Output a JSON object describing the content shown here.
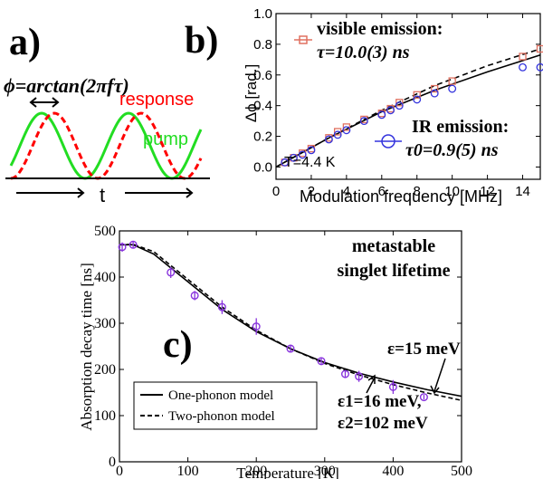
{
  "chart_data": [
    {
      "panel_label": "a)",
      "type": "line",
      "formula": "ϕ=arctan(2πfτ)",
      "series": [
        {
          "name": "response",
          "color": "#ff0000",
          "style": "dashed"
        },
        {
          "name": "pump",
          "color": "#22dd22",
          "style": "solid"
        }
      ],
      "xlabel": "t"
    },
    {
      "panel_label": "b)",
      "type": "scatter",
      "xlabel": "Modulation frequency [MHz]",
      "ylabel": "Δϕ [rad.]",
      "xlim": [
        0,
        15
      ],
      "ylim": [
        -0.08,
        1.0
      ],
      "xticks": [
        "0",
        "2",
        "4",
        "6",
        "8",
        "10",
        "12",
        "14"
      ],
      "yticks": [
        "0.0",
        "0.2",
        "0.4",
        "0.6",
        "0.8",
        "1.0"
      ],
      "annotation": "T=4.4 K",
      "series": [
        {
          "name": "visible emission:",
          "fit_label": "τ=10.0(3) ns",
          "color": "#e07060",
          "marker": "square",
          "x": [
            0.5,
            1.0,
            1.5,
            2.0,
            3.0,
            3.5,
            4.0,
            5.0,
            6.0,
            6.5,
            7.0,
            8.0,
            9.0,
            10.0,
            14.0,
            15.0
          ],
          "y": [
            0.03,
            0.06,
            0.09,
            0.12,
            0.19,
            0.23,
            0.26,
            0.31,
            0.35,
            0.38,
            0.42,
            0.47,
            0.51,
            0.56,
            0.72,
            0.77
          ]
        },
        {
          "name": "IR emission:",
          "fit_label": "τ0=0.9(5) ns",
          "color": "#3333dd",
          "marker": "circle",
          "x": [
            0.5,
            1.0,
            1.5,
            2.0,
            3.0,
            3.5,
            4.0,
            5.0,
            6.0,
            6.5,
            7.0,
            8.0,
            9.0,
            10.0,
            14.0,
            15.0
          ],
          "y": [
            0.03,
            0.06,
            0.08,
            0.11,
            0.18,
            0.21,
            0.24,
            0.3,
            0.34,
            0.37,
            0.4,
            0.44,
            0.48,
            0.51,
            0.65,
            0.65
          ]
        },
        {
          "name": "fit-solid",
          "style": "solid",
          "x": [
            0,
            3,
            6,
            9,
            12,
            15
          ],
          "y": [
            0.0,
            0.19,
            0.36,
            0.5,
            0.62,
            0.73
          ]
        },
        {
          "name": "fit-dashed",
          "style": "dashed",
          "x": [
            0,
            3,
            6,
            9,
            12,
            15
          ],
          "y": [
            0.0,
            0.19,
            0.37,
            0.53,
            0.66,
            0.77
          ]
        }
      ]
    },
    {
      "panel_label": "c)",
      "type": "scatter",
      "xlabel": "Temperature [K]",
      "ylabel": "Absorption decay time [ns]",
      "xlim": [
        0,
        500
      ],
      "ylim": [
        0,
        500
      ],
      "xticks": [
        "0",
        "100",
        "200",
        "300",
        "400",
        "500"
      ],
      "yticks": [
        "0",
        "100",
        "200",
        "300",
        "400",
        "500"
      ],
      "title_lines": [
        "metastable",
        "singlet lifetime"
      ],
      "legend": [
        {
          "label": "One-phonon model",
          "style": "solid"
        },
        {
          "label": "Two-phonon model",
          "style": "dashed"
        }
      ],
      "annotations": [
        "ε=15 meV",
        "ε1=16 meV,",
        "ε2=102 meV"
      ],
      "series": [
        {
          "name": "data",
          "color": "#8833dd",
          "marker": "circle",
          "x": [
            4,
            20,
            75,
            110,
            150,
            200,
            250,
            295,
            330,
            350,
            400,
            445
          ],
          "y": [
            465,
            470,
            410,
            360,
            335,
            293,
            245,
            218,
            190,
            185,
            162,
            140
          ],
          "err": [
            10,
            8,
            12,
            10,
            15,
            18,
            8,
            8,
            8,
            12,
            15,
            5
          ]
        },
        {
          "name": "one-phonon",
          "style": "solid",
          "x": [
            0,
            20,
            50,
            100,
            150,
            200,
            250,
            300,
            350,
            400,
            450,
            500
          ],
          "y": [
            470,
            470,
            450,
            390,
            330,
            282,
            245,
            215,
            192,
            173,
            156,
            142
          ]
        },
        {
          "name": "two-phonon",
          "style": "dashed",
          "x": [
            0,
            20,
            50,
            100,
            150,
            200,
            250,
            300,
            350,
            400,
            450,
            500
          ],
          "y": [
            470,
            471,
            455,
            395,
            335,
            285,
            245,
            213,
            188,
            167,
            149,
            133
          ]
        }
      ]
    }
  ]
}
